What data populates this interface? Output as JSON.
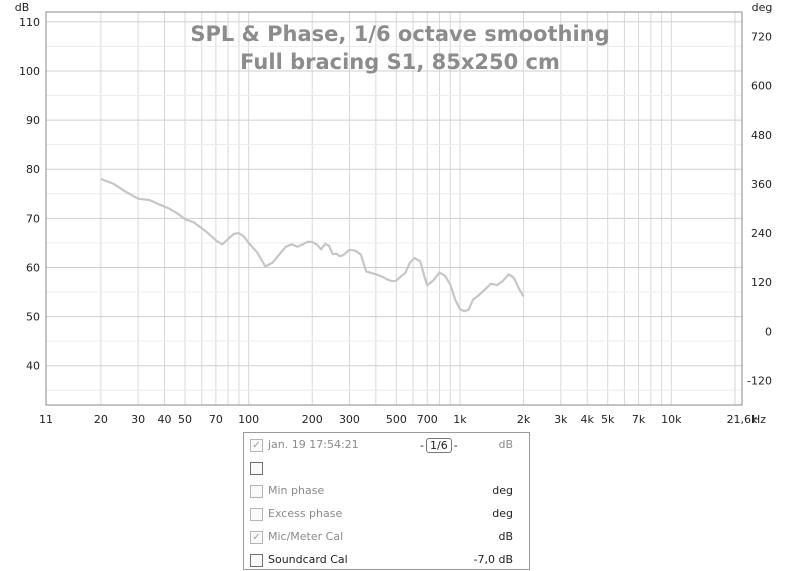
{
  "chart_data": {
    "type": "line",
    "title": "SPL & Phase, 1/6 octave smoothing",
    "subtitle": "Full bracing S1, 85x250 cm",
    "ylabel": "dB",
    "y2label": "deg",
    "xunit": "Hz",
    "xscale": "log",
    "xlim": [
      11,
      21600
    ],
    "ylim": [
      32,
      112
    ],
    "y2lim": [
      -180,
      780
    ],
    "yticks": [
      40,
      50,
      60,
      70,
      80,
      90,
      100,
      110
    ],
    "y2ticks": [
      -120,
      0,
      120,
      240,
      360,
      480,
      600,
      720
    ],
    "xticks": [
      {
        "v": 11,
        "label": "11"
      },
      {
        "v": 20,
        "label": "20"
      },
      {
        "v": 30,
        "label": "30"
      },
      {
        "v": 40,
        "label": "40"
      },
      {
        "v": 50,
        "label": "50"
      },
      {
        "v": 70,
        "label": "70"
      },
      {
        "v": 100,
        "label": "100"
      },
      {
        "v": 200,
        "label": "200"
      },
      {
        "v": 300,
        "label": "300"
      },
      {
        "v": 500,
        "label": "500"
      },
      {
        "v": 700,
        "label": "700"
      },
      {
        "v": 1000,
        "label": "1k"
      },
      {
        "v": 2000,
        "label": "2k"
      },
      {
        "v": 3000,
        "label": "3k"
      },
      {
        "v": 4000,
        "label": "4k"
      },
      {
        "v": 5000,
        "label": "5k"
      },
      {
        "v": 7000,
        "label": "7k"
      },
      {
        "v": 10000,
        "label": "10k"
      },
      {
        "v": 21600,
        "label": "21,6k"
      }
    ],
    "grid": true,
    "series": [
      {
        "color": "#c6c6c6",
        "x": [
          20,
          23,
          26,
          30,
          34,
          38,
          42,
          46,
          50,
          55,
          60,
          65,
          70,
          75,
          80,
          85,
          90,
          95,
          100,
          110,
          120,
          130,
          140,
          150,
          160,
          170,
          180,
          190,
          200,
          210,
          220,
          230,
          240,
          250,
          260,
          270,
          280,
          300,
          320,
          340,
          360,
          380,
          400,
          430,
          460,
          480,
          500,
          520,
          550,
          580,
          610,
          650,
          680,
          700,
          750,
          800,
          850,
          900,
          950,
          1000,
          1050,
          1100,
          1150,
          1200,
          1300,
          1400,
          1500,
          1600,
          1700,
          1800,
          1900,
          2000
        ],
        "y": [
          78,
          77,
          75.5,
          74,
          73.7,
          72.8,
          72,
          71,
          69.8,
          69.2,
          68,
          66.8,
          65.5,
          64.7,
          65.8,
          66.8,
          67,
          66.3,
          65,
          63,
          60.2,
          61,
          62.7,
          64.2,
          64.7,
          64.2,
          64.7,
          65.2,
          65.2,
          64.7,
          63.7,
          64.8,
          64.4,
          62.7,
          62.8,
          62.3,
          62.5,
          63.6,
          63.4,
          62.6,
          59.2,
          58.9,
          58.6,
          58.1,
          57.4,
          57.2,
          57.3,
          58,
          58.8,
          61,
          61.9,
          61.2,
          58,
          56.4,
          57.4,
          59,
          58.3,
          56.5,
          53.4,
          51.5,
          51.1,
          51.4,
          53.4,
          54,
          55.3,
          56.7,
          56.4,
          57.3,
          58.6,
          57.9,
          55.7,
          54.1
        ]
      }
    ]
  },
  "axes": {
    "left_unit": "dB",
    "right_unit": "deg",
    "x_unit": "Hz"
  },
  "legend": {
    "row1": {
      "checked": true,
      "name": "jan. 19 17:54:21",
      "smoothing": "1/6",
      "unit": "dB"
    },
    "row2": {
      "checked": false,
      "name": "",
      "unit": ""
    },
    "row3": {
      "checked": false,
      "name": "Min phase",
      "unit": "deg"
    },
    "row4": {
      "checked": false,
      "name": "Excess phase",
      "unit": "deg"
    },
    "row5": {
      "checked": true,
      "name": "Mic/Meter Cal",
      "unit": "dB"
    },
    "row6": {
      "checked": false,
      "name": "Soundcard Cal",
      "unit": "-7,0 dB"
    }
  }
}
